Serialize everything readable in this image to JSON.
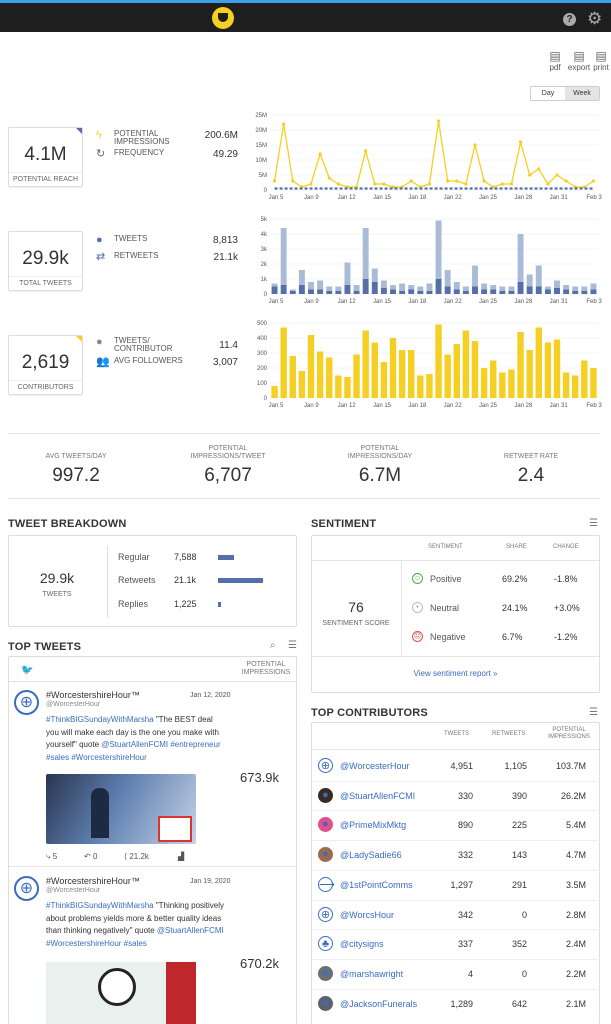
{
  "toolbar": {
    "pdf": "pdf",
    "export": "export",
    "print": "print",
    "help_glyph": "?",
    "gear_glyph": "⚙",
    "toggle_day": "Day",
    "toggle_week": "Week"
  },
  "colors": {
    "accent_yellow": "#f5cf21",
    "accent_blue": "#5570a8",
    "light_blue": "#a9bbd6",
    "link": "#3a6cc0"
  },
  "reach": {
    "value": "4.1M",
    "label": "POTENTIAL REACH",
    "m1_label_a": "POTENTIAL",
    "m1_label_b": "IMPRESSIONS",
    "m1_value": "200.6M",
    "m2_label": "FREQUENCY",
    "m2_value": "49.29"
  },
  "tweets": {
    "value": "29.9k",
    "label": "TOTAL TWEETS",
    "m1_label": "TWEETS",
    "m1_value": "8,813",
    "m2_label": "RETWEETS",
    "m2_value": "21.1k"
  },
  "contributors": {
    "value": "2,619",
    "label": "CONTRIBUTORS",
    "m1_label_a": "TWEETS/",
    "m1_label_b": "CONTRIBUTOR",
    "m1_value": "11.4",
    "m2_label": "AVG FOLLOWERS",
    "m2_value": "3,007"
  },
  "chart_data": [
    {
      "type": "line",
      "title": "Potential impressions",
      "x_labels": [
        "Jan 5",
        "Jan 9",
        "Jan 12",
        "Jan 15",
        "Jan 18",
        "Jan 22",
        "Jan 25",
        "Jan 28",
        "Jan 31",
        "Feb 3"
      ],
      "y_ticks": [
        "0",
        "5M",
        "10M",
        "15M",
        "20M",
        "25M"
      ],
      "ylim": [
        0,
        25
      ],
      "series": [
        {
          "name": "impressions",
          "values": [
            3,
            22,
            3,
            1,
            2,
            12,
            4,
            2,
            1,
            1,
            13,
            2,
            2,
            1,
            1,
            3,
            1,
            2,
            23,
            3,
            3,
            2,
            15,
            3,
            1,
            2,
            2,
            16,
            5,
            7,
            2,
            5,
            3,
            1,
            1,
            3
          ],
          "color": "#f5cf21"
        },
        {
          "name": "baseline",
          "values": [
            0.5,
            0.5,
            0.5,
            0.5,
            0.5,
            0.5,
            0.5,
            0.5,
            0.5,
            0.5,
            0.5,
            0.5,
            0.5,
            0.5,
            0.5,
            0.5,
            0.5,
            0.5,
            0.5,
            0.5,
            0.5,
            0.5,
            0.5,
            0.5,
            0.5,
            0.5,
            0.5,
            0.5,
            0.5,
            0.5,
            0.5,
            0.5,
            0.5,
            0.5,
            0.5,
            0.5
          ],
          "color": "#5570a8"
        }
      ]
    },
    {
      "type": "bar",
      "title": "Tweets and retweets",
      "x_labels": [
        "Jan 5",
        "Jan 9",
        "Jan 12",
        "Jan 15",
        "Jan 18",
        "Jan 22",
        "Jan 25",
        "Jan 28",
        "Jan 31",
        "Feb 3"
      ],
      "y_ticks": [
        "0",
        "1k",
        "2k",
        "3k",
        "4k",
        "5k"
      ],
      "ylim": [
        0,
        5
      ],
      "series": [
        {
          "name": "Tweets",
          "values": [
            0.5,
            0.6,
            0.2,
            0.6,
            0.3,
            0.3,
            0.2,
            0.2,
            0.6,
            0.2,
            1,
            0.8,
            0.4,
            0.3,
            0.2,
            0.3,
            0.2,
            0.2,
            1,
            0.5,
            0.3,
            0.2,
            0.5,
            0.3,
            0.3,
            0.2,
            0.2,
            0.8,
            0.5,
            0.5,
            0.3,
            0.4,
            0.3,
            0.2,
            0.2,
            0.3
          ],
          "color": "#5570a8"
        },
        {
          "name": "Retweets",
          "values": [
            0.2,
            3.8,
            0.1,
            1,
            0.5,
            0.6,
            0.3,
            0.3,
            1.5,
            0.4,
            3.4,
            0.9,
            0.5,
            0.3,
            0.5,
            0.3,
            0.3,
            0.5,
            3.9,
            1.1,
            0.5,
            0.3,
            1.4,
            0.4,
            0.3,
            0.3,
            0.3,
            3.2,
            0.8,
            1.4,
            0.2,
            0.5,
            0.3,
            0.3,
            0.3,
            0.4
          ],
          "color": "#a9bbd6"
        }
      ]
    },
    {
      "type": "bar",
      "title": "Contributors",
      "x_labels": [
        "Jan 5",
        "Jan 9",
        "Jan 12",
        "Jan 15",
        "Jan 18",
        "Jan 22",
        "Jan 25",
        "Jan 28",
        "Jan 31",
        "Feb 3"
      ],
      "y_ticks": [
        "0",
        "100",
        "200",
        "300",
        "400",
        "500"
      ],
      "ylim": [
        0,
        500
      ],
      "series": [
        {
          "name": "Contributors",
          "values": [
            80,
            470,
            280,
            180,
            420,
            310,
            270,
            150,
            140,
            290,
            450,
            370,
            240,
            400,
            320,
            320,
            150,
            160,
            490,
            290,
            360,
            450,
            380,
            200,
            250,
            170,
            190,
            440,
            320,
            470,
            370,
            390,
            170,
            150,
            250,
            200
          ],
          "color": "#f5cf21"
        }
      ]
    }
  ],
  "stats": [
    {
      "label": "AVG TWEETS/DAY",
      "value": "997.2"
    },
    {
      "label": "POTENTIAL IMPRESSIONS/TWEET",
      "value": "6,707"
    },
    {
      "label": "POTENTIAL IMPRESSIONS/DAY",
      "value": "6.7M"
    },
    {
      "label": "RETWEET RATE",
      "value": "2.4"
    }
  ],
  "breakdown": {
    "title": "TWEET BREAKDOWN",
    "value": "29.9k",
    "label": "TWEETS",
    "rows": [
      {
        "label": "Regular",
        "value": "7,588",
        "pct": 0.36
      },
      {
        "label": "Retweets",
        "value": "21.1k",
        "pct": 1
      },
      {
        "label": "Replies",
        "value": "1,225",
        "pct": 0.05
      }
    ]
  },
  "sentiment": {
    "title": "SENTIMENT",
    "score": "76",
    "score_label": "SENTIMENT SCORE",
    "h_sentiment": "SENTIMENT",
    "h_share": "SHARE",
    "h_change": "CHANGE",
    "rows": [
      {
        "label": "Positive",
        "share": "69.2%",
        "change": "-1.8%",
        "color": "#4cae4c",
        "face": "☺"
      },
      {
        "label": "Neutral",
        "share": "24.1%",
        "change": "+3.0%",
        "color": "#999999",
        "face": "•"
      },
      {
        "label": "Negative",
        "share": "6.7%",
        "change": "-1.2%",
        "color": "#d9534f",
        "face": "☹"
      }
    ],
    "link": "View sentiment report »"
  },
  "top_tweets": {
    "title": "TOP TWEETS",
    "col": "POTENTIAL IMPRESSIONS",
    "twitter_glyph": "🐦",
    "items": [
      {
        "name": "#WorcestershireHour™",
        "handle": "@WorcesterHour",
        "date": "Jan 12, 2020",
        "text_tag": "#ThinkBIGSundayWithMarsha",
        "text_body": " \"The BEST deal you will make each day is the one you make with yourself\" quote ",
        "text_tail": "@StuartAllenFCMI #entrepreneur #sales #WorcestershireHour",
        "impressions": "673.9k",
        "replies": "5",
        "retweets": "0",
        "likes": "21.2k"
      },
      {
        "name": "#WorcestershireHour™",
        "handle": "@WorcesterHour",
        "date": "Jan 19, 2020",
        "text_tag": "#ThinkBIGSundayWithMarsha",
        "text_body": " \"Thinking positively about problems yields more & better quality ideas than thinking negatively\" quote ",
        "text_tail": "@StuartAllenFCMI #WorcestershireHour #sales",
        "impressions": "670.2k"
      }
    ]
  },
  "contributors_table": {
    "title": "TOP CONTRIBUTORS",
    "h_tweets": "TWEETS",
    "h_retweets": "RETWEETS",
    "h_imp": "POTENTIAL IMPRESSIONS",
    "rows": [
      {
        "name": "@WorcesterHour",
        "tweets": "4,951",
        "retweets": "1,105",
        "imp": "103.7M"
      },
      {
        "name": "@StuartAllenFCMI",
        "tweets": "330",
        "retweets": "390",
        "imp": "26.2M"
      },
      {
        "name": "@PrimeMixMktg",
        "tweets": "890",
        "retweets": "225",
        "imp": "5.4M"
      },
      {
        "name": "@LadySadie66",
        "tweets": "332",
        "retweets": "143",
        "imp": "4.7M"
      },
      {
        "name": "@1stPointComms",
        "tweets": "1,297",
        "retweets": "291",
        "imp": "3.5M"
      },
      {
        "name": "@WorcsHour",
        "tweets": "342",
        "retweets": "0",
        "imp": "2.8M"
      },
      {
        "name": "@citysigns",
        "tweets": "337",
        "retweets": "352",
        "imp": "2.4M"
      },
      {
        "name": "@marshawright",
        "tweets": "4",
        "retweets": "0",
        "imp": "2.2M"
      },
      {
        "name": "@JacksonFunerals",
        "tweets": "1,289",
        "retweets": "642",
        "imp": "2.1M"
      }
    ]
  }
}
